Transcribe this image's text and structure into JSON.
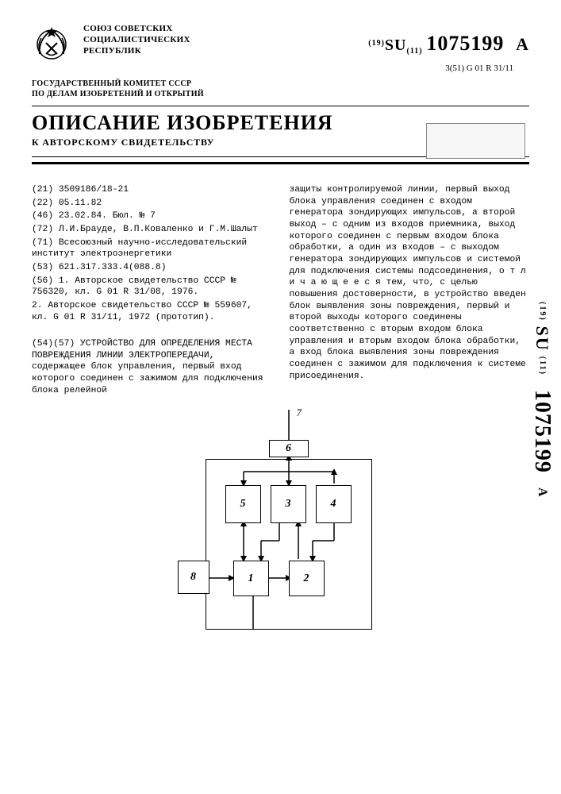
{
  "header": {
    "union": "СОЮЗ СОВЕТСКИХ\nСОЦИАЛИСТИЧЕСКИХ\nРЕСПУБЛИК",
    "pub_prefix": "(19)",
    "pub_su": "SU",
    "pub_sub": "(11)",
    "pub_number": "1075199",
    "pub_suffix": "A",
    "classification": "3(51) G 01 R 31/11",
    "committee": "ГОСУДАРСТВЕННЫЙ КОМИТЕТ СССР\nПО ДЕЛАМ ИЗОБРЕТЕНИЙ И ОТКРЫТИЙ"
  },
  "title": "ОПИСАНИЕ ИЗОБРЕТЕНИЯ",
  "subtitle": "К АВТОРСКОМУ СВИДЕТЕЛЬСТВУ",
  "left_column": [
    "(21) 3509186/18-21",
    "(22) 05.11.82",
    "(46) 23.02.84. Бюл. № 7",
    "(72) Л.И.Брауде, В.П.Коваленко и Г.М.Шалыт",
    "(71) Всесоюзный научно-исследовательский институт электроэнергетики",
    "(53) 621.317.333.4(088.8)",
    "(56) 1. Авторское свидетельство СССР № 756320, кл. G 01 R 31/08, 1976.",
    "2. Авторское свидетельство СССР № 559607, кл. G 01 R 31/11, 1972 (прототип).",
    "",
    "(54)(57) УСТРОЙСТВО ДЛЯ ОПРЕДЕЛЕНИЯ МЕСТА ПОВРЕЖДЕНИЯ ЛИНИИ ЭЛЕКТРОПЕРЕДАЧИ, содержащее блок управления, первый вход которого соединен с зажимом для подключения блока релейной"
  ],
  "right_column": [
    "защиты контролируемой линии, первый выход блока управления соединен с входом генератора зондирующих импульсов, а второй выход – с одним из входов приемника, выход которого соединен с первым входом блока обработки, а один из входов – с выходом генератора зондирующих импульсов и системой для подключения системы подсоединения, о т л и ч а ю щ е е с я тем, что, с целью повышения достоверности, в устройство введен блок выявления зоны повреждения, первый и второй выходы которого соединены соответственно с вторым входом блока управления и вторым входом блока обработки, а вход блока выявления зоны повреждения соединен с зажимом для подключения к системе присоединения."
  ],
  "side": {
    "prefix": "(19)",
    "su": "SU",
    "sub": "(11)",
    "number": "1075199",
    "suffix": "A"
  },
  "diagram": {
    "boxes": {
      "b1": "1",
      "b2": "2",
      "b3": "3",
      "b4": "4",
      "b5": "5",
      "b6": "6",
      "b8": "8"
    },
    "label7": "7"
  },
  "colors": {
    "text": "#000000",
    "bg": "#ffffff",
    "stamp": "#f7f7f7"
  }
}
